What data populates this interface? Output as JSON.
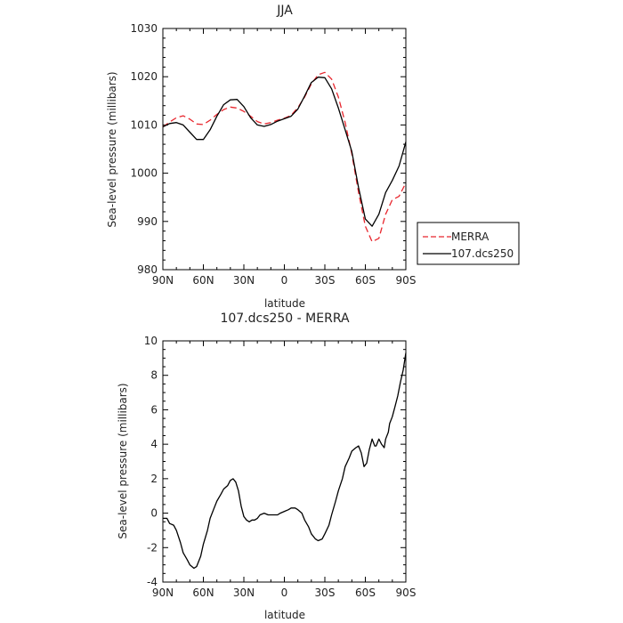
{
  "chart_data": [
    {
      "type": "line",
      "title": "JJA",
      "xlabel": "latitude",
      "ylabel": "Sea-level pressure (millibars)",
      "xlim": [
        -90,
        90
      ],
      "ylim": [
        980,
        1030
      ],
      "x_tick_values": [
        -90,
        -60,
        -30,
        0,
        30,
        60,
        90
      ],
      "x_tick_labels": [
        "90N",
        "60N",
        "30N",
        "0",
        "30S",
        "60S",
        "90S"
      ],
      "y_ticks": [
        980,
        990,
        1000,
        1010,
        1020,
        1030
      ],
      "legend": {
        "position": "right",
        "entries": [
          "MERRA",
          "107.dcs250"
        ]
      },
      "series": [
        {
          "name": "MERRA",
          "color": "#e8262d",
          "style": "dashed",
          "x": [
            -90,
            -85,
            -80,
            -75,
            -70,
            -65,
            -60,
            -55,
            -50,
            -45,
            -40,
            -35,
            -30,
            -25,
            -20,
            -15,
            -10,
            -5,
            0,
            5,
            10,
            15,
            20,
            25,
            30,
            35,
            40,
            45,
            50,
            55,
            60,
            65,
            70,
            75,
            80,
            85,
            90
          ],
          "y": [
            1009.6,
            1010.6,
            1011.5,
            1011.9,
            1011.2,
            1010.2,
            1010.1,
            1011.0,
            1012.2,
            1013.2,
            1013.7,
            1013.5,
            1012.8,
            1011.8,
            1010.7,
            1010.2,
            1010.5,
            1011.0,
            1011.4,
            1012.0,
            1013.6,
            1015.8,
            1018.5,
            1020.4,
            1020.9,
            1019.5,
            1015.8,
            1010.5,
            1004.0,
            996.0,
            989.0,
            985.8,
            986.5,
            991.5,
            994.5,
            995.2,
            998.0
          ]
        },
        {
          "name": "107.dcs250",
          "color": "#000000",
          "style": "solid",
          "x": [
            -90,
            -85,
            -80,
            -75,
            -70,
            -65,
            -60,
            -55,
            -50,
            -45,
            -40,
            -35,
            -30,
            -25,
            -20,
            -15,
            -10,
            -5,
            0,
            5,
            10,
            15,
            20,
            25,
            30,
            35,
            40,
            45,
            50,
            55,
            60,
            65,
            70,
            75,
            80,
            85,
            90
          ],
          "y": [
            1009.6,
            1010.3,
            1010.5,
            1010.0,
            1008.5,
            1007.0,
            1007.0,
            1009.0,
            1011.8,
            1014.2,
            1015.2,
            1015.3,
            1013.8,
            1011.5,
            1010.0,
            1009.7,
            1010.1,
            1010.8,
            1011.3,
            1011.8,
            1013.3,
            1016.0,
            1018.8,
            1019.9,
            1019.8,
            1017.5,
            1013.5,
            1009.0,
            1004.5,
            997.0,
            990.5,
            989.0,
            991.5,
            996.0,
            998.5,
            1001.5,
            1006.5
          ]
        }
      ]
    },
    {
      "type": "line",
      "title": "107.dcs250 - MERRA",
      "xlabel": "latitude",
      "ylabel": "Sea-level pressure (millibars)",
      "xlim": [
        -90,
        90
      ],
      "ylim": [
        -4,
        10
      ],
      "x_tick_values": [
        -90,
        -60,
        -30,
        0,
        30,
        60,
        90
      ],
      "x_tick_labels": [
        "90N",
        "60N",
        "30N",
        "0",
        "30S",
        "60S",
        "90S"
      ],
      "y_ticks": [
        -4,
        -2,
        0,
        2,
        4,
        6,
        8,
        10
      ],
      "series": [
        {
          "color": "#000000",
          "style": "solid",
          "x": [
            -90,
            -87,
            -85,
            -82,
            -80,
            -77,
            -75,
            -72,
            -70,
            -67,
            -65,
            -62,
            -60,
            -57,
            -55,
            -52,
            -50,
            -47,
            -45,
            -42,
            -40,
            -38,
            -36,
            -34,
            -32,
            -30,
            -28,
            -26,
            -24,
            -22,
            -20,
            -18,
            -15,
            -12,
            -10,
            -8,
            -5,
            -3,
            0,
            3,
            5,
            8,
            10,
            13,
            15,
            18,
            20,
            23,
            25,
            28,
            30,
            33,
            35,
            38,
            40,
            43,
            45,
            48,
            50,
            53,
            55,
            57,
            59,
            61,
            63,
            65,
            67,
            68,
            70,
            72,
            74,
            75,
            77,
            78,
            80,
            82,
            84,
            86,
            88,
            90
          ],
          "y": [
            -0.3,
            -0.3,
            -0.6,
            -0.7,
            -1.0,
            -1.7,
            -2.3,
            -2.7,
            -3.0,
            -3.2,
            -3.1,
            -2.5,
            -1.8,
            -1.0,
            -0.3,
            0.3,
            0.7,
            1.1,
            1.4,
            1.6,
            1.9,
            2.0,
            1.8,
            1.3,
            0.4,
            -0.2,
            -0.4,
            -0.5,
            -0.4,
            -0.4,
            -0.3,
            -0.1,
            0.0,
            -0.1,
            -0.1,
            -0.1,
            -0.1,
            0.0,
            0.1,
            0.2,
            0.3,
            0.3,
            0.2,
            0.0,
            -0.4,
            -0.8,
            -1.2,
            -1.5,
            -1.6,
            -1.5,
            -1.2,
            -0.7,
            -0.1,
            0.7,
            1.3,
            2.0,
            2.7,
            3.2,
            3.6,
            3.8,
            3.9,
            3.5,
            2.7,
            2.9,
            3.7,
            4.3,
            3.9,
            3.9,
            4.3,
            4.0,
            3.8,
            4.3,
            4.7,
            5.2,
            5.6,
            6.2,
            6.8,
            7.6,
            8.3,
            9.3
          ]
        }
      ]
    }
  ]
}
